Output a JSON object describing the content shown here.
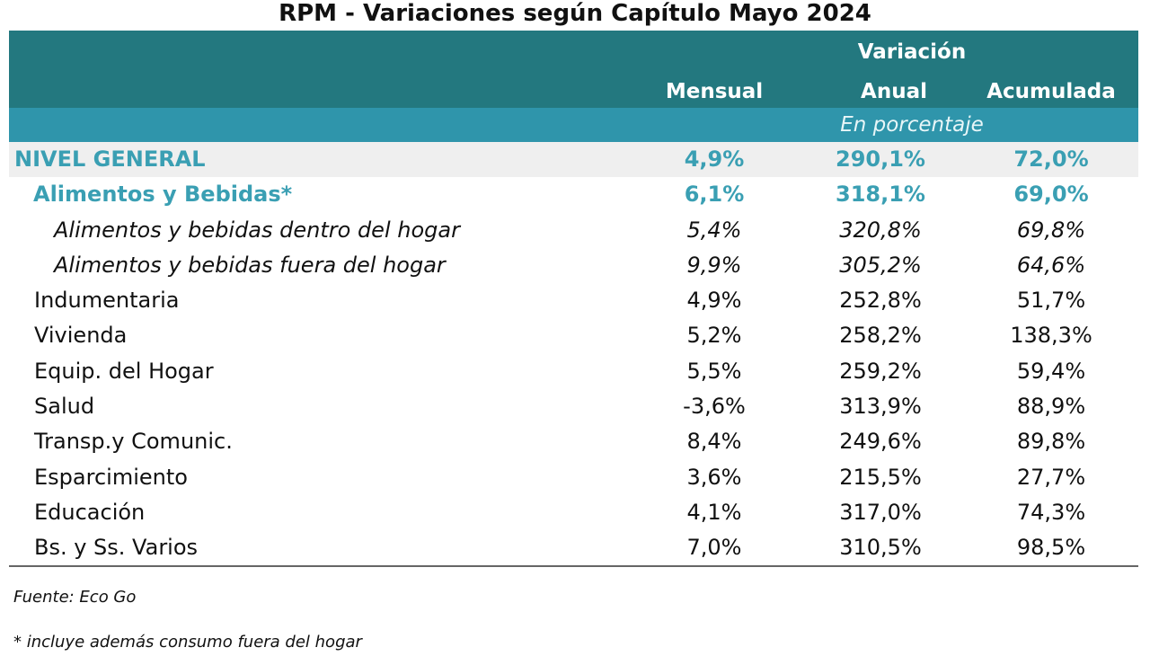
{
  "title": "RPM - Variaciones según Capítulo Mayo 2024",
  "header": {
    "group_label": "Variación",
    "columns": [
      "Mensual",
      "Anual",
      "Acumulada"
    ],
    "unit_label": "En porcentaje"
  },
  "rows": [
    {
      "label": "NIVEL GENERAL",
      "mensual": "4,9%",
      "anual": "290,1%",
      "acumulada": "72,0%"
    },
    {
      "label": "Alimentos y Bebidas*",
      "mensual": "6,1%",
      "anual": "318,1%",
      "acumulada": "69,0%"
    },
    {
      "label": "Alimentos y bebidas dentro del hogar",
      "mensual": "5,4%",
      "anual": "320,8%",
      "acumulada": "69,8%"
    },
    {
      "label": "Alimentos y bebidas fuera del hogar",
      "mensual": "9,9%",
      "anual": "305,2%",
      "acumulada": "64,6%"
    },
    {
      "label": "Indumentaria",
      "mensual": "4,9%",
      "anual": "252,8%",
      "acumulada": "51,7%"
    },
    {
      "label": "Vivienda",
      "mensual": "5,2%",
      "anual": "258,2%",
      "acumulada": "138,3%"
    },
    {
      "label": "Equip. del Hogar",
      "mensual": "5,5%",
      "anual": "259,2%",
      "acumulada": "59,4%"
    },
    {
      "label": "Salud",
      "mensual": "-3,6%",
      "anual": "313,9%",
      "acumulada": "88,9%"
    },
    {
      "label": "Transp.y Comunic.",
      "mensual": "8,4%",
      "anual": "249,6%",
      "acumulada": "89,8%"
    },
    {
      "label": "Esparcimiento",
      "mensual": "3,6%",
      "anual": "215,5%",
      "acumulada": "27,7%"
    },
    {
      "label": "Educación",
      "mensual": "4,1%",
      "anual": "317,0%",
      "acumulada": "74,3%"
    },
    {
      "label": "Bs. y Ss. Varios",
      "mensual": "7,0%",
      "anual": "310,5%",
      "acumulada": "98,5%"
    }
  ],
  "source": "Fuente: Eco Go",
  "footnote": "* incluye además consumo fuera del hogar",
  "colors": {
    "header_dark": "#23787f",
    "header_light": "#2f95ab",
    "highlight_text": "#3a9fb3",
    "general_row_bg": "#efefef"
  },
  "chart_data": {
    "type": "table",
    "title": "RPM - Variaciones según Capítulo Mayo 2024",
    "columns": [
      "Mensual",
      "Anual",
      "Acumulada"
    ],
    "unit": "En porcentaje",
    "categories": [
      "NIVEL GENERAL",
      "Alimentos y Bebidas*",
      "Alimentos y bebidas dentro del hogar",
      "Alimentos y bebidas fuera del hogar",
      "Indumentaria",
      "Vivienda",
      "Equip. del Hogar",
      "Salud",
      "Transp.y Comunic.",
      "Esparcimiento",
      "Educación",
      "Bs. y Ss. Varios"
    ],
    "series": [
      {
        "name": "Mensual",
        "values": [
          4.9,
          6.1,
          5.4,
          9.9,
          4.9,
          5.2,
          5.5,
          -3.6,
          8.4,
          3.6,
          4.1,
          7.0
        ]
      },
      {
        "name": "Anual",
        "values": [
          290.1,
          318.1,
          320.8,
          305.2,
          252.8,
          258.2,
          259.2,
          313.9,
          249.6,
          215.5,
          317.0,
          310.5
        ]
      },
      {
        "name": "Acumulada",
        "values": [
          72.0,
          69.0,
          69.8,
          64.6,
          51.7,
          138.3,
          59.4,
          88.9,
          89.8,
          27.7,
          74.3,
          98.5
        ]
      }
    ]
  }
}
